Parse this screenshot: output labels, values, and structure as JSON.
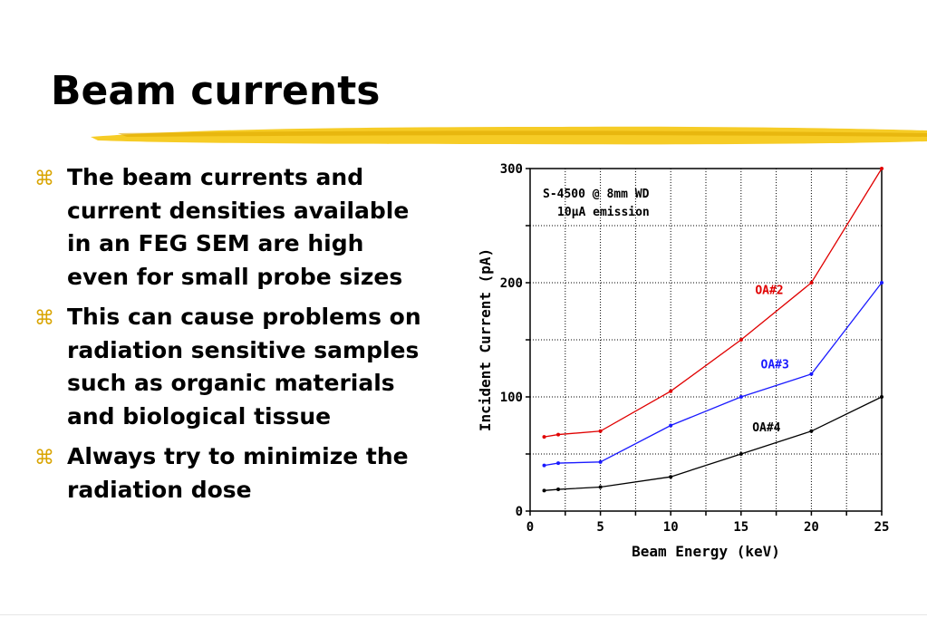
{
  "slide": {
    "title": "Beam currents",
    "highlight_color": "#f5c300",
    "bullet_icon": "command-key-icon",
    "bullet_glyph": "⌘",
    "bullets": [
      "The beam currents and current densities available in an FEG SEM are high even for small probe sizes",
      "This can cause problems on radiation sensitive samples such as organic materials and biological tissue",
      "Always try to minimize the radiation dose"
    ]
  },
  "chart_data": {
    "type": "line",
    "title": "",
    "annotation": [
      "S-4500 @ 8mm WD",
      "10µA emission"
    ],
    "xlabel": "Beam Energy (keV)",
    "ylabel": "Incident Current (pA)",
    "xlim": [
      0,
      25
    ],
    "ylim": [
      0,
      300
    ],
    "xticks": [
      "0",
      "5",
      "10",
      "15",
      "20",
      "25"
    ],
    "yticks": [
      "0",
      "100",
      "200",
      "300"
    ],
    "grid": true,
    "legend": "inline labels on lines",
    "series": [
      {
        "name": "OA#2",
        "color": "#e00000",
        "x": [
          1,
          2,
          5,
          10,
          15,
          20,
          25
        ],
        "y": [
          65,
          67,
          70,
          105,
          150,
          200,
          300
        ],
        "label_at": [
          16,
          190
        ]
      },
      {
        "name": "OA#3",
        "color": "#1a1aff",
        "x": [
          1,
          2,
          5,
          10,
          15,
          20,
          25
        ],
        "y": [
          40,
          42,
          43,
          75,
          100,
          120,
          200
        ],
        "label_at": [
          16.4,
          125
        ]
      },
      {
        "name": "OA#4",
        "color": "#000000",
        "x": [
          1,
          2,
          5,
          10,
          15,
          20,
          25
        ],
        "y": [
          18,
          19,
          21,
          30,
          50,
          70,
          100
        ],
        "label_at": [
          15.8,
          70
        ]
      }
    ]
  }
}
